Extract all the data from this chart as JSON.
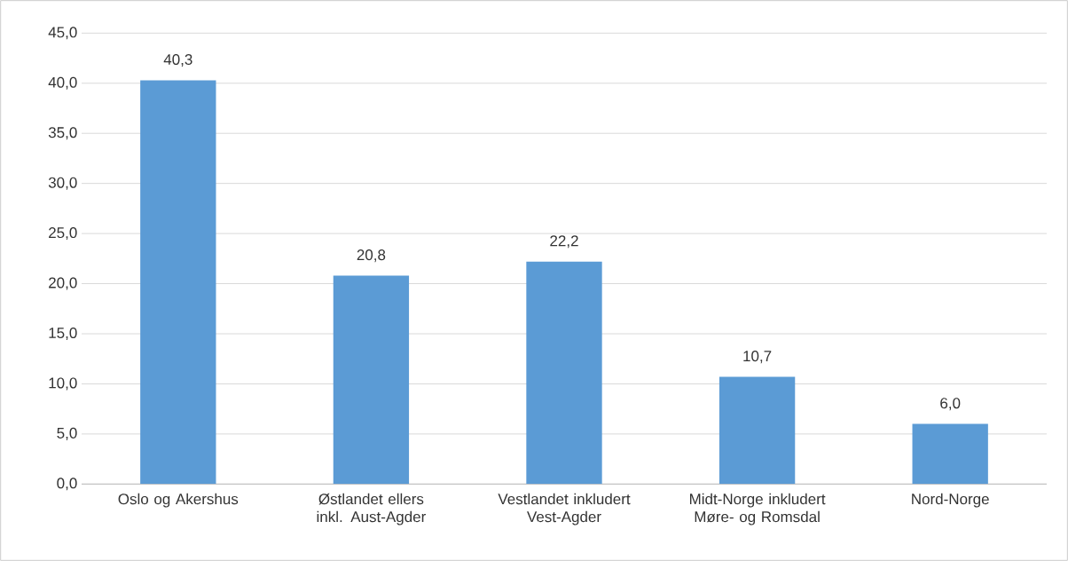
{
  "chart_data": {
    "type": "bar",
    "categories": [
      "Oslo og Akershus",
      "Østlandet ellers inkl. Aust-Agder",
      "Vestlandet inkludert Vest-Agder",
      "Midt-Norge inkludert Møre- og Romsdal",
      "Nord-Norge"
    ],
    "values": [
      40.3,
      20.8,
      22.2,
      10.7,
      6.0
    ],
    "value_labels": [
      "40,3",
      "20,8",
      "22,2",
      "10,7",
      "6,0"
    ],
    "color": "#5b9bd5",
    "ylim": [
      0,
      45
    ],
    "yticks": [
      {
        "value": 0,
        "label": "0,0"
      },
      {
        "value": 5,
        "label": "5,0"
      },
      {
        "value": 10,
        "label": "10,0"
      },
      {
        "value": 15,
        "label": "15,0"
      },
      {
        "value": 20,
        "label": "20,0"
      },
      {
        "value": 25,
        "label": "25,0"
      },
      {
        "value": 30,
        "label": "30,0"
      },
      {
        "value": 35,
        "label": "35,0"
      },
      {
        "value": 40,
        "label": "40,0"
      },
      {
        "value": 45,
        "label": "45,0"
      }
    ],
    "grid": "y"
  }
}
